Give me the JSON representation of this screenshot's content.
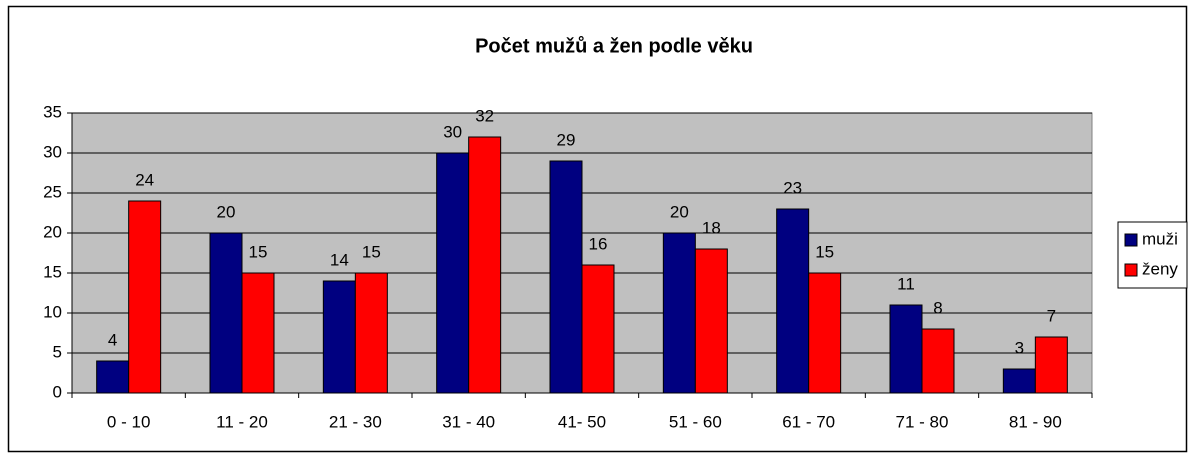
{
  "chart_data": {
    "type": "bar",
    "title": "Počet mužů a žen podle věku",
    "categories": [
      "0 - 10",
      "11 - 20",
      "21 - 30",
      "31 - 40",
      "41- 50",
      "51 - 60",
      "61 - 70",
      "71 - 80",
      "81 - 90"
    ],
    "series": [
      {
        "name": "muži",
        "color": "#000080",
        "values": [
          4,
          20,
          14,
          30,
          29,
          20,
          23,
          11,
          3
        ]
      },
      {
        "name": "ženy",
        "color": "#ff0000",
        "values": [
          24,
          15,
          15,
          32,
          16,
          18,
          15,
          8,
          7
        ]
      }
    ],
    "ylim": [
      0,
      35
    ],
    "yticks": [
      0,
      5,
      10,
      15,
      20,
      25,
      30,
      35
    ],
    "grid": true,
    "legend": "right"
  }
}
